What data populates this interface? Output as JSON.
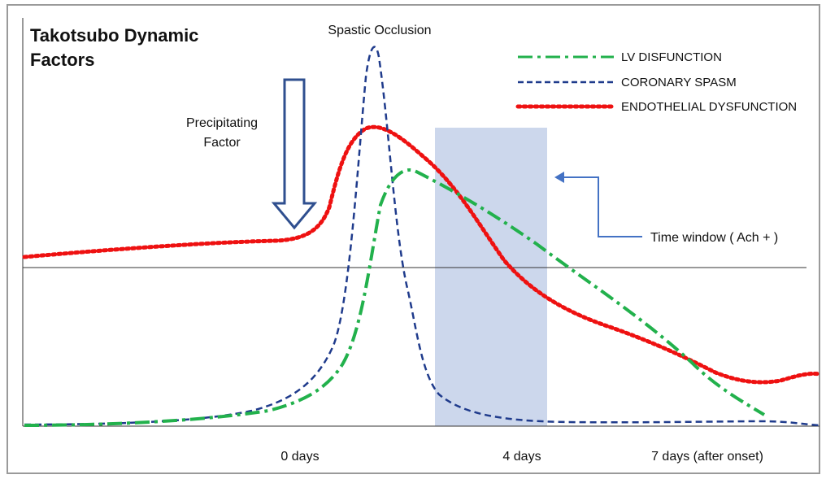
{
  "title_lines": [
    "Takotsubo Dynamic",
    "Factors"
  ],
  "annotations": {
    "spastic_occlusion": "Spastic Occlusion",
    "precipitating_lines": [
      "Precipitating",
      "Factor"
    ],
    "time_window": "Time  window ( Ach + )"
  },
  "legend": [
    {
      "label": "LV DISFUNCTION",
      "color": "#22b14c",
      "dash": "dashdot"
    },
    {
      "label": "CORONARY SPASM",
      "color": "#1f3b8c",
      "dash": "dashed"
    },
    {
      "label": "ENDOTHELIAL DYSFUNCTION",
      "color": "#ee1111",
      "dash": "dotted"
    }
  ],
  "x_labels": [
    "0 days",
    "4 days",
    "7 days (after onset)"
  ],
  "colors": {
    "frame_border": "#9a9a9a",
    "axis": "#333333",
    "arrow_outline": "#2f4f8f",
    "window_fill": "#c7d3ea",
    "connector": "#4472c4"
  }
}
